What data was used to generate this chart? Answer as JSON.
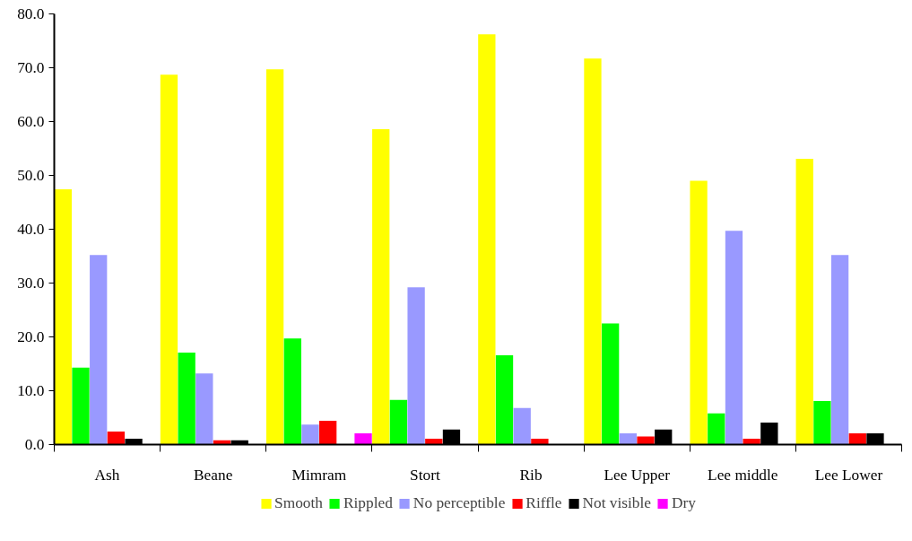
{
  "chart_data": {
    "type": "bar",
    "categories": [
      "Ash",
      "Beane",
      "Mimram",
      "Stort",
      "Rib",
      "Lee Upper",
      "Lee middle",
      "Lee Lower"
    ],
    "series": [
      {
        "name": "Smooth",
        "color": "#ffff00",
        "values": [
          47.4,
          68.7,
          69.7,
          58.6,
          76.2,
          71.7,
          49.0,
          53.1
        ]
      },
      {
        "name": "Rippled",
        "color": "#00ff00",
        "values": [
          14.3,
          17.1,
          19.7,
          8.3,
          16.6,
          22.5,
          5.8,
          8.1
        ]
      },
      {
        "name": "No perceptible",
        "color": "#9999ff",
        "values": [
          35.2,
          13.2,
          3.7,
          29.2,
          6.8,
          2.1,
          39.7,
          35.2
        ]
      },
      {
        "name": "Riffle",
        "color": "#ff0000",
        "values": [
          2.4,
          0.8,
          4.4,
          1.1,
          1.1,
          1.5,
          1.1,
          2.1
        ]
      },
      {
        "name": "Not visible",
        "color": "#000000",
        "values": [
          1.1,
          0.8,
          0,
          2.8,
          0,
          2.8,
          4.1,
          2.1
        ]
      },
      {
        "name": "Dry",
        "color": "#ff00ff",
        "values": [
          0,
          0,
          2.1,
          0,
          0,
          0,
          0,
          0
        ]
      }
    ],
    "ylim": [
      0,
      80
    ],
    "yticks": [
      {
        "value": 0,
        "label": "0.0"
      },
      {
        "value": 10,
        "label": "10.0"
      },
      {
        "value": 20,
        "label": "20.0"
      },
      {
        "value": 30,
        "label": "30.0"
      },
      {
        "value": 40,
        "label": "40.0"
      },
      {
        "value": 50,
        "label": "50.0"
      },
      {
        "value": 60,
        "label": "60.0"
      },
      {
        "value": 70,
        "label": "70.0"
      },
      {
        "value": 80,
        "label": "80.0"
      }
    ],
    "grid": false,
    "legend": "bottom"
  }
}
